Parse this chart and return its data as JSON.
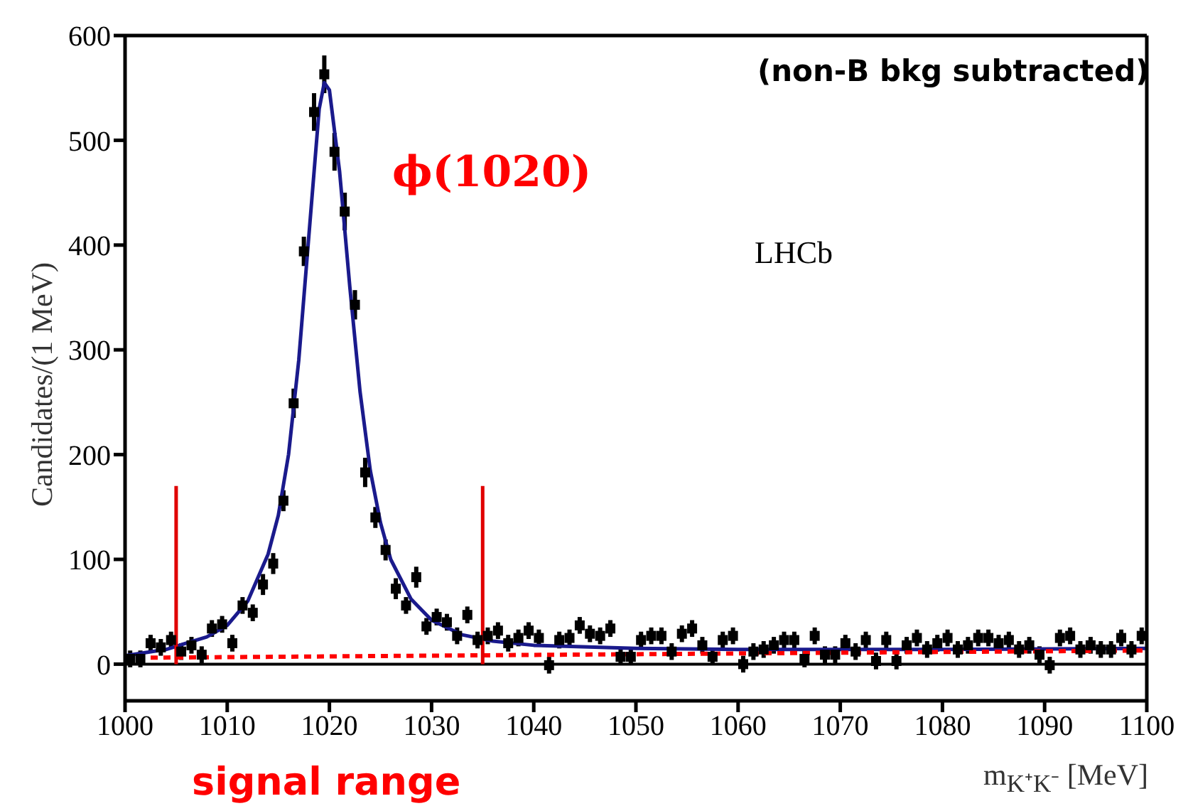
{
  "chart_data": {
    "type": "scatter",
    "xlabel": "m$_{K⁺K⁻}$ [MeV]",
    "ylabel": "Candidates/(1 MeV)",
    "annotations": [
      "(non-B bkg subtracted)",
      "ϕ(1020)",
      "LHCb",
      "signal range"
    ],
    "xlim": [
      1000,
      1100
    ],
    "ylim": [
      -35,
      600
    ],
    "xticks": [
      1000,
      1010,
      1020,
      1030,
      1040,
      1050,
      1060,
      1070,
      1080,
      1090,
      1100
    ],
    "yticks": [
      0,
      100,
      200,
      300,
      400,
      500,
      600
    ],
    "ref_lines": [
      {
        "axis": "y",
        "value": 0,
        "color": "#000000"
      }
    ],
    "series": [
      {
        "color": "#000000",
        "marker": "square",
        "x": [
          1000.5,
          1001.5,
          1002.5,
          1003.5,
          1004.5,
          1005.5,
          1006.5,
          1007.5,
          1008.5,
          1009.5,
          1010.5,
          1011.5,
          1012.5,
          1013.5,
          1014.5,
          1015.5,
          1016.5,
          1017.5,
          1018.5,
          1019.5,
          1020.5,
          1021.5,
          1022.5,
          1023.5,
          1024.5,
          1025.5,
          1026.5,
          1027.5,
          1028.5,
          1029.5,
          1030.5,
          1031.5,
          1032.5,
          1033.5,
          1034.5,
          1035.5,
          1036.5,
          1037.5,
          1038.5,
          1039.5,
          1040.5,
          1041.5,
          1042.5,
          1043.5,
          1044.5,
          1045.5,
          1046.5,
          1047.5,
          1048.5,
          1049.5,
          1050.5,
          1051.5,
          1052.5,
          1053.5,
          1054.5,
          1055.5,
          1056.5,
          1057.5,
          1058.5,
          1059.5,
          1060.5,
          1061.5,
          1062.5,
          1063.5,
          1064.5,
          1065.5,
          1066.5,
          1067.5,
          1068.5,
          1069.5,
          1070.5,
          1071.5,
          1072.5,
          1073.5,
          1074.5,
          1075.5,
          1076.5,
          1077.5,
          1078.5,
          1079.5,
          1080.5,
          1081.5,
          1082.5,
          1083.5,
          1084.5,
          1085.5,
          1086.5,
          1087.5,
          1088.5,
          1089.5,
          1090.5,
          1091.5,
          1092.5,
          1093.5,
          1094.5,
          1095.5,
          1096.5,
          1097.5,
          1098.5,
          1099.5
        ],
        "values": [
          5,
          5,
          20,
          16,
          23,
          12,
          18,
          9,
          34,
          38,
          20,
          56,
          49,
          76,
          96,
          156,
          249,
          394,
          527,
          563,
          489,
          432,
          343,
          183,
          140,
          109,
          72,
          56,
          83,
          36,
          45,
          40,
          27,
          47,
          23,
          27,
          32,
          20,
          25,
          32,
          25,
          -1,
          23,
          25,
          37,
          29,
          27,
          34,
          7,
          7,
          23,
          27,
          27,
          12,
          29,
          34,
          18,
          7,
          23,
          27,
          0,
          12,
          14,
          18,
          23,
          23,
          5,
          27,
          9,
          9,
          20,
          12,
          23,
          3,
          23,
          3,
          18,
          25,
          14,
          20,
          25,
          14,
          18,
          25,
          25,
          20,
          23,
          14,
          18,
          9,
          -1,
          25,
          27,
          14,
          18,
          14,
          14,
          25,
          14,
          27
        ],
        "errors": [
          8,
          8,
          8,
          8,
          8,
          8,
          8,
          8,
          8,
          8,
          8,
          8,
          8,
          10,
          10,
          10,
          14,
          14,
          18,
          18,
          18,
          18,
          14,
          14,
          10,
          10,
          10,
          8,
          10,
          8,
          8,
          8,
          8,
          8,
          8,
          8,
          8,
          8,
          8,
          8,
          8,
          8,
          8,
          8,
          8,
          8,
          8,
          8,
          8,
          8,
          8,
          8,
          8,
          8,
          8,
          8,
          8,
          8,
          8,
          8,
          8,
          8,
          8,
          8,
          8,
          8,
          8,
          8,
          8,
          8,
          8,
          8,
          8,
          8,
          8,
          8,
          8,
          8,
          8,
          8,
          8,
          8,
          8,
          8,
          8,
          8,
          8,
          8,
          8,
          8,
          8,
          8,
          8,
          8,
          8,
          8,
          8,
          8,
          8,
          8
        ]
      },
      {
        "type": "line",
        "color": "#1a1a8c",
        "marker": "none",
        "line_style": "solid",
        "x": [
          1000,
          1004,
          1008,
          1010,
          1012,
          1014,
          1015,
          1016,
          1017,
          1018,
          1019,
          1019.5,
          1020,
          1021,
          1022,
          1023,
          1024,
          1025,
          1026,
          1028,
          1030,
          1033,
          1036,
          1040,
          1050,
          1060,
          1080,
          1100
        ],
        "values": [
          8,
          14,
          26,
          37,
          60,
          105,
          142,
          200,
          290,
          410,
          530,
          555,
          548,
          470,
          360,
          260,
          185,
          135,
          100,
          62,
          42,
          28,
          22,
          18,
          15,
          14,
          14,
          15
        ]
      },
      {
        "type": "line",
        "color": "#ff0000",
        "marker": "none",
        "line_style": "dashed",
        "x": [
          1000,
          1100
        ],
        "values": [
          6,
          13
        ]
      },
      {
        "type": "line",
        "color": "#e00000",
        "marker": "none",
        "line_style": "solid",
        "x": [
          1005,
          1005
        ],
        "values": [
          0,
          170
        ]
      },
      {
        "type": "line",
        "color": "#e00000",
        "marker": "none",
        "line_style": "solid",
        "x": [
          1035,
          1035
        ],
        "values": [
          0,
          170
        ]
      }
    ]
  }
}
